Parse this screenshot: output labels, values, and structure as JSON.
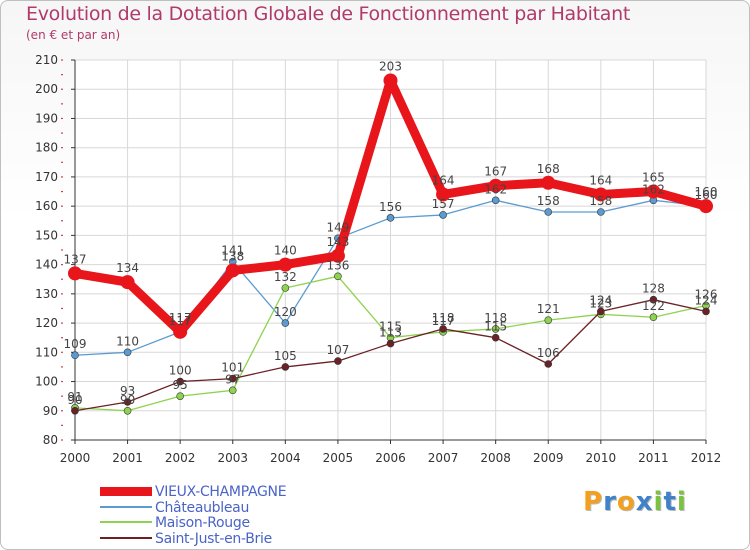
{
  "title": "Evolution de la Dotation Globale de Fonctionnement par Habitant",
  "subtitle": "(en € et par an)",
  "brand": {
    "letters": [
      "P",
      "r",
      "o",
      "x",
      "i",
      "t",
      "i"
    ],
    "colors": [
      "#f2a01e",
      "#3f82c9",
      "#f2a01e",
      "#3f82c9",
      "#7cc242",
      "#3f82c9",
      "#7cc242"
    ]
  },
  "chart_data": {
    "type": "line",
    "title": "Evolution de la Dotation Globale de Fonctionnement par Habitant",
    "subtitle": "(en € et par an)",
    "xlabel": "",
    "ylabel": "",
    "x": [
      "2000",
      "2001",
      "2002",
      "2003",
      "2004",
      "2005",
      "2006",
      "2007",
      "2008",
      "2009",
      "2010",
      "2011",
      "2012"
    ],
    "ylim": [
      80,
      210
    ],
    "yticks": [
      80,
      90,
      100,
      110,
      120,
      130,
      140,
      150,
      160,
      170,
      180,
      190,
      200,
      210
    ],
    "grid": true,
    "legend_position": "bottom-left",
    "series": [
      {
        "name": "VIEUX-CHAMPAGNE",
        "color": "#e8151b",
        "values": [
          137,
          134,
          117,
          138,
          140,
          143,
          203,
          164,
          167,
          168,
          164,
          165,
          160
        ]
      },
      {
        "name": "Châteaubleau",
        "color": "#5b9bd1",
        "values": [
          109,
          110,
          117,
          141,
          120,
          149,
          156,
          157,
          162,
          158,
          158,
          162,
          160
        ]
      },
      {
        "name": "Maison-Rouge",
        "color": "#8dd34e",
        "values": [
          91,
          90,
          95,
          97,
          132,
          136,
          115,
          117,
          118,
          121,
          123,
          122,
          126
        ]
      },
      {
        "name": "Saint-Just-en-Brie",
        "color": "#6b2226",
        "values": [
          90,
          93,
          100,
          101,
          105,
          107,
          113,
          118,
          115,
          106,
          124,
          128,
          124
        ]
      }
    ]
  }
}
